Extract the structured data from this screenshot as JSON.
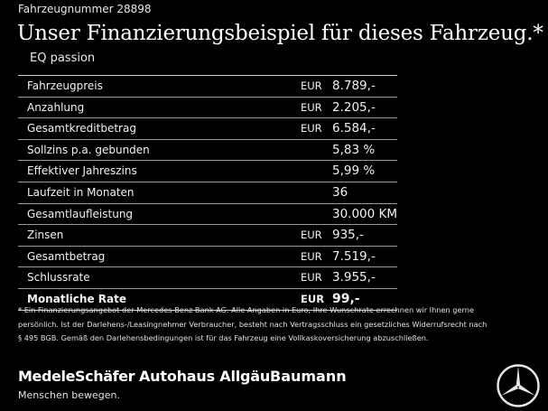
{
  "header": {
    "vehicle_number": "Fahrzeugnummer 28898",
    "title": "Unser Finanzierungsbeispiel für dieses Fahrzeug.*",
    "model": "EQ passion"
  },
  "rows": [
    {
      "label": "Fahrzeugpreis",
      "currency": "EUR",
      "value": "8.789,-"
    },
    {
      "label": "Anzahlung",
      "currency": "EUR",
      "value": "2.205,-"
    },
    {
      "label": "Gesamtkreditbetrag",
      "currency": "EUR",
      "value": "6.584,-"
    },
    {
      "label": "Sollzins p.a. gebunden",
      "currency": "",
      "value": "5,83 %"
    },
    {
      "label": "Effektiver Jahreszins",
      "currency": "",
      "value": "5,99 %"
    },
    {
      "label": "Laufzeit in Monaten",
      "currency": "",
      "value": "36"
    },
    {
      "label": "Gesamtlaufleistung",
      "currency": "",
      "value": "30.000 KM"
    },
    {
      "label": "Zinsen",
      "currency": "EUR",
      "value": "935,-"
    },
    {
      "label": "Gesamtbetrag",
      "currency": "EUR",
      "value": "7.519,-"
    },
    {
      "label": "Schlussrate",
      "currency": "EUR",
      "value": "3.955,-"
    },
    {
      "label": "Monatliche Rate",
      "currency": "EUR",
      "value": "99,-"
    }
  ],
  "footnote": {
    "line1": "* Ein Finanzierungsangebot der Mercedes-Benz Bank AG. Alle Angaben in Euro, Ihre Wunschrate errechnen wir Ihnen gerne",
    "line2": "persönlich. Ist der Darlehens-/Leasingnehmer Verbraucher, besteht nach Vertragsschluss ein gesetzliches Widerrufsrecht nach",
    "line3": "§ 495 BGB. Gemäß den Darlehensbedingungen ist für das Fahrzeug eine Vollkaskoversicherung abzuschließen."
  },
  "brands": {
    "brand1": "MedeleSchäfer",
    "brand2": "Autohaus Allgäu",
    "brand3": "Baumann",
    "slogan": "Menschen bewegen.",
    "logo_icon": "mercedes-star-icon"
  },
  "colors": {
    "background": "#000000",
    "text": "#ffffff"
  }
}
